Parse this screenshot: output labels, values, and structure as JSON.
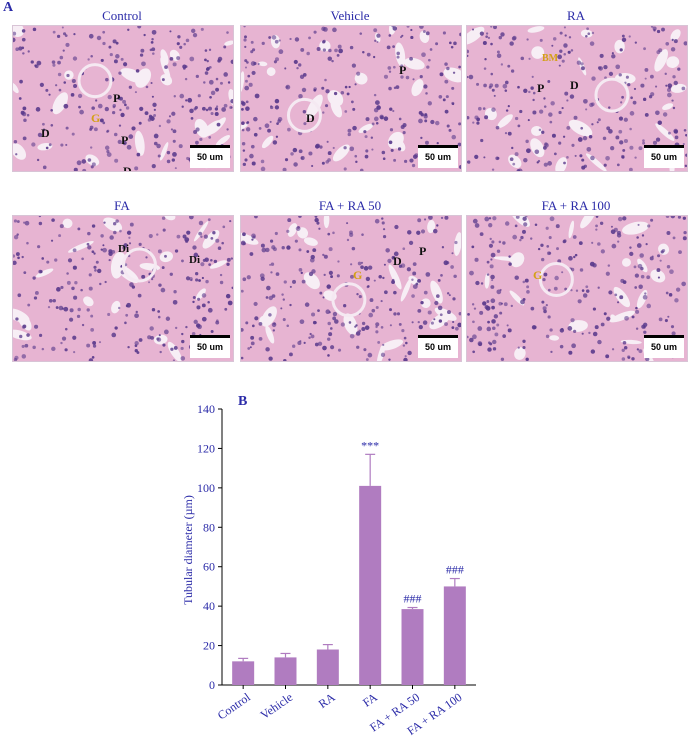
{
  "panel_a_label": "A",
  "panel_b_label": "B",
  "micrographs": [
    {
      "caption": "Control",
      "scale": "50 um",
      "labels": [
        "P",
        "G",
        "D",
        "P",
        "D"
      ]
    },
    {
      "caption": "Vehicle",
      "scale": "50 um",
      "labels": [
        "P",
        "D"
      ]
    },
    {
      "caption": "RA",
      "scale": "50 um",
      "labels": [
        "BM",
        "P",
        "D"
      ]
    },
    {
      "caption": "FA",
      "scale": "50 um",
      "labels": [
        "Di",
        "Di"
      ]
    },
    {
      "caption": "FA +  RA 50",
      "scale": "50 um",
      "labels": [
        "G",
        "D",
        "P"
      ]
    },
    {
      "caption": "FA +  RA 100",
      "scale": "50 um",
      "labels": [
        "G"
      ]
    }
  ],
  "colors": {
    "bar": "#b07cc0",
    "text_blue": "#2b2ba8",
    "tissue_bg": "#e7b4d2",
    "nuclei": "#5a3a8c"
  },
  "chart_data": {
    "type": "bar",
    "ylabel": "Tubular diameter (µm)",
    "xlabel": "",
    "ylim": [
      0,
      140
    ],
    "yticks": [
      0,
      20,
      40,
      60,
      80,
      100,
      120,
      140
    ],
    "categories": [
      "Control",
      "Vehicle",
      "RA",
      "FA",
      "FA + RA 50",
      "FA + RA 100"
    ],
    "values": [
      12,
      14,
      18,
      101,
      38.5,
      50
    ],
    "errors": [
      1.5,
      2,
      2.5,
      16,
      0.8,
      4
    ],
    "annotations": [
      "",
      "",
      "",
      "***",
      "###",
      "###"
    ],
    "grid": false
  }
}
